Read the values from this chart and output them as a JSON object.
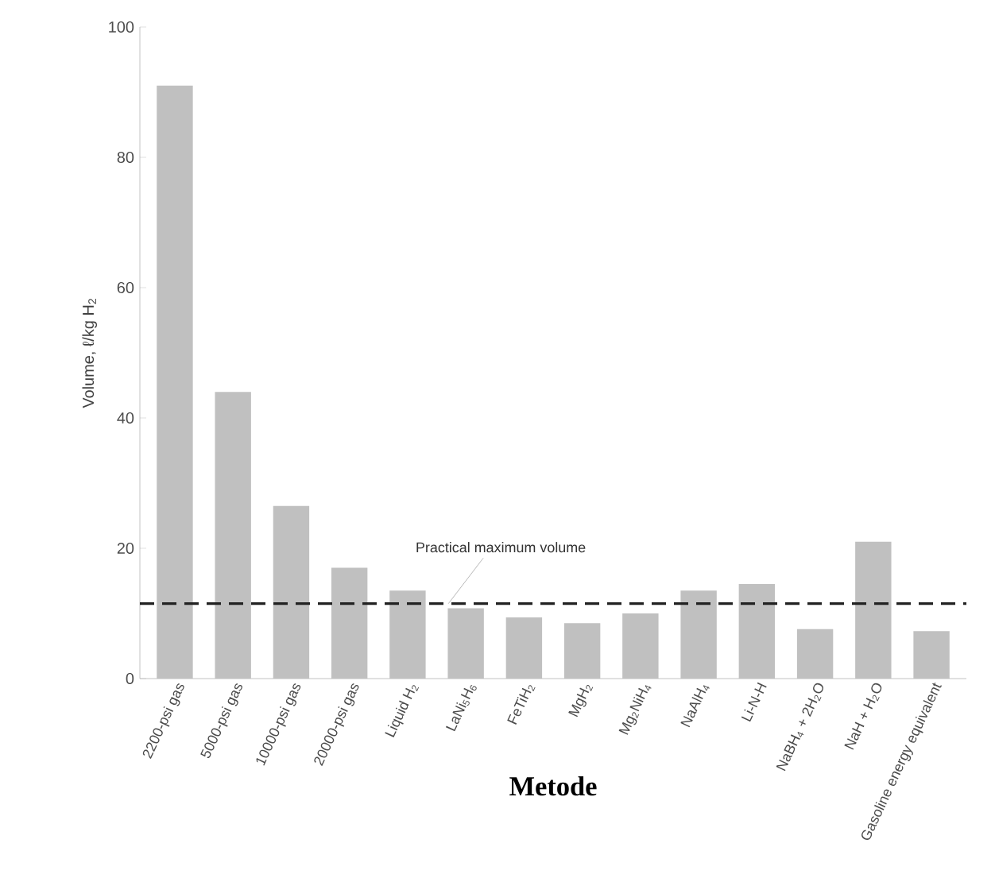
{
  "chart_data": {
    "type": "bar",
    "categories": [
      "2200-psi gas",
      "5000-psi gas",
      "10000-psi gas",
      "20000-psi gas",
      "Liquid H$_{2}$",
      "LaNi$_{5}$H$_{6}$",
      "FeTiH$_{2}$",
      "MgH$_{2}$",
      "Mg$_{2}$NiH$_{4}$",
      "NaAlH$_{4}$",
      "Li-N-H",
      "NaBH$_{4}$ + 2H$_{2}$O",
      "NaH + H$_{2}$O",
      "Gasoline energy equivalent"
    ],
    "values": [
      91,
      44,
      26.5,
      17,
      13.5,
      10.8,
      9.4,
      8.5,
      10,
      13.5,
      14.5,
      7.6,
      21,
      7.3
    ],
    "color": "#c0c0c0",
    "xlabel": "Metode",
    "ylabel": "Volume, ℓ/kg H$_{2}$",
    "ylim": [
      0,
      100
    ],
    "yticks": [
      0,
      20,
      40,
      60,
      80,
      100
    ],
    "ref_lines": [
      {
        "axis": "y",
        "value": 11.5,
        "label": "Practical maximum volume",
        "color": "#222222",
        "line_style": "dashed"
      }
    ]
  }
}
